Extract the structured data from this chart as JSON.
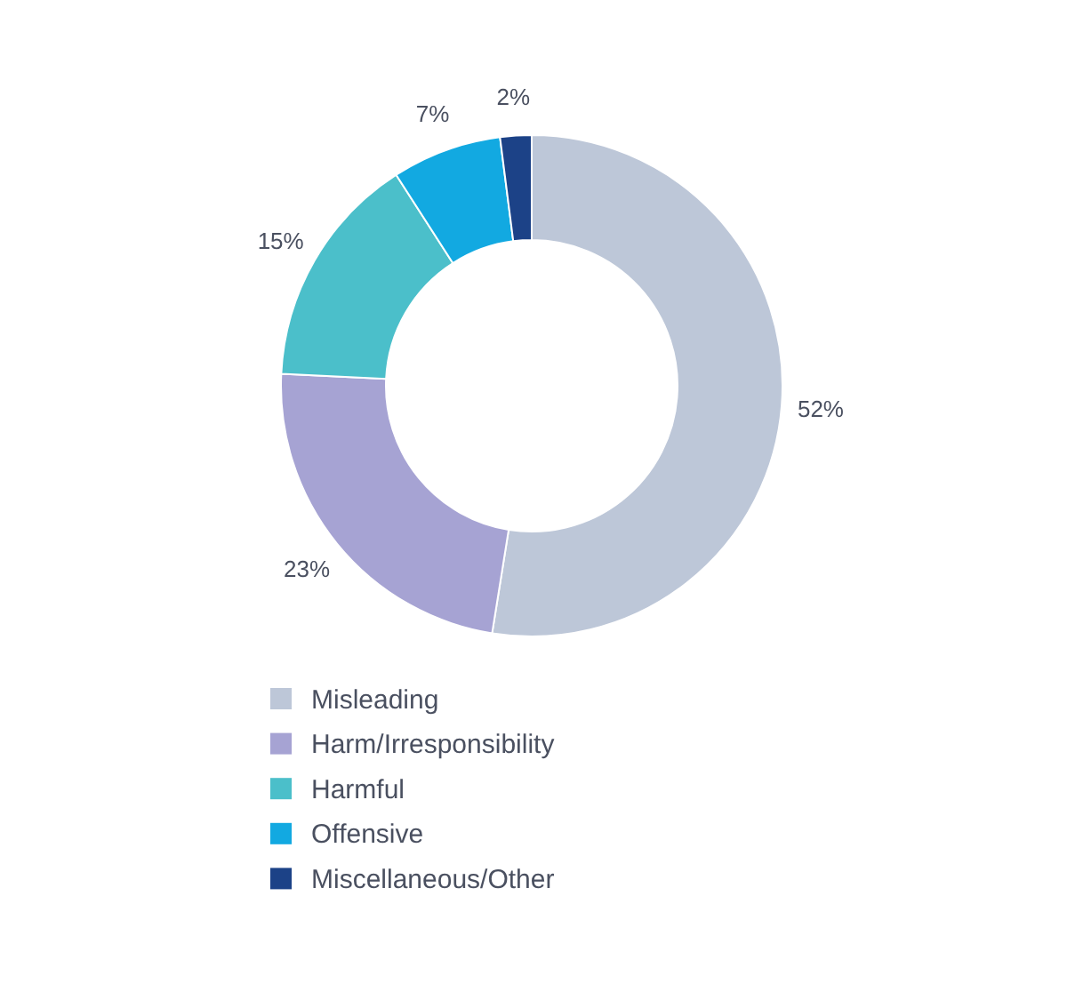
{
  "chart_data": {
    "type": "donut",
    "categories": [
      "Misleading",
      "Harm/Irresponsibility",
      "Harmful",
      "Offensive",
      "Miscellaneous/Other"
    ],
    "values": [
      52,
      23,
      15,
      7,
      2
    ],
    "colors": [
      "#bdc7d8",
      "#a6a3d3",
      "#4bbfca",
      "#12a9e1",
      "#1c4287"
    ],
    "value_labels": [
      "52%",
      "23%",
      "15%",
      "7%",
      "2%"
    ],
    "legend": "bottom"
  }
}
